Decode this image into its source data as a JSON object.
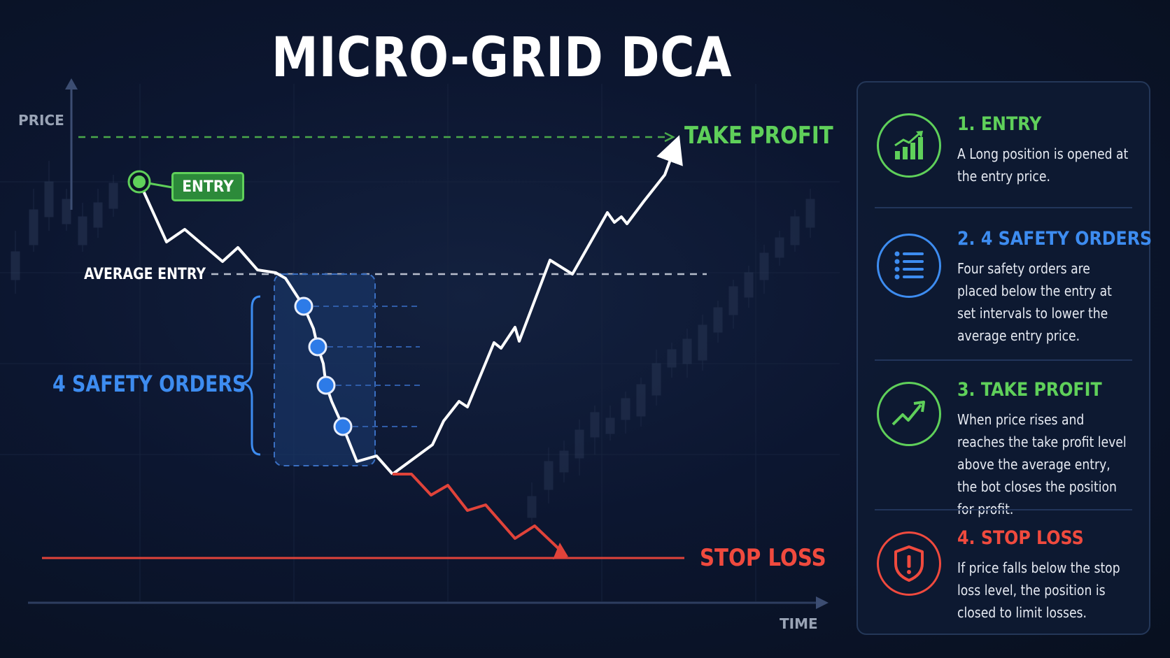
{
  "title": "MICRO-GRID DCA",
  "axes": {
    "y_label": "PRICE",
    "x_label": "TIME"
  },
  "diagram": {
    "entry_label": "ENTRY",
    "average_entry_label": "AVERAGE ENTRY",
    "safety_orders_label": "4 SAFETY ORDERS",
    "take_profit_label": "TAKE PROFIT",
    "stop_loss_label": "STOP LOSS"
  },
  "steps": [
    {
      "heading": "1. ENTRY",
      "description": "A Long position is opened at the entry price.",
      "icon": "bar-chart-up-icon",
      "color": "#5fd05a"
    },
    {
      "heading": "2. 4 SAFETY ORDERS",
      "description": "Four safety orders are placed below the entry at set intervals to lower the average entry price.",
      "icon": "list-icon",
      "color": "#3d8cf0"
    },
    {
      "heading": "3. TAKE PROFIT",
      "description": "When price rises and reaches the take profit level above the average entry, the bot closes the position for profit.",
      "icon": "trend-up-icon",
      "color": "#5fd05a"
    },
    {
      "heading": "4. STOP LOSS",
      "description": "If price falls below the stop loss level, the position is closed to limit losses.",
      "icon": "shield-alert-icon",
      "color": "#f04a3e"
    }
  ],
  "colors": {
    "background": "#0b1326",
    "green": "#5fd05a",
    "blue": "#3d8cf0",
    "red": "#f04a3e",
    "white": "#ffffff"
  }
}
